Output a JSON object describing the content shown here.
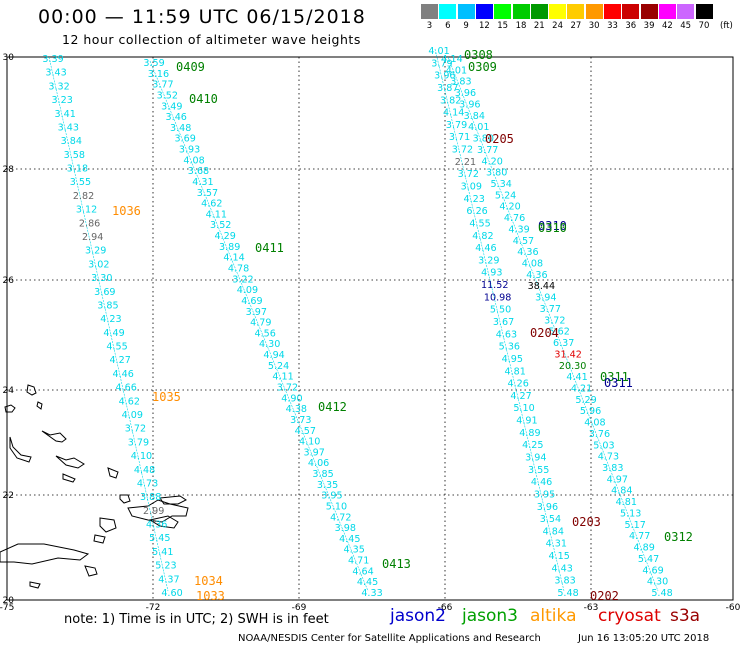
{
  "header": {
    "title": "00:00 — 11:59 UTC 06/15/2018",
    "subtitle": "12 hour collection of altimeter wave heights"
  },
  "legend": {
    "unit": "(ft)",
    "bins": [
      {
        "label": "3",
        "color": "#808080"
      },
      {
        "label": "6",
        "color": "#00ffff"
      },
      {
        "label": "9",
        "color": "#00bfff"
      },
      {
        "label": "12",
        "color": "#0000ff"
      },
      {
        "label": "15",
        "color": "#00ff00"
      },
      {
        "label": "18",
        "color": "#00cc00"
      },
      {
        "label": "21",
        "color": "#009900"
      },
      {
        "label": "24",
        "color": "#ffff00"
      },
      {
        "label": "27",
        "color": "#ffcc00"
      },
      {
        "label": "30",
        "color": "#ff9900"
      },
      {
        "label": "33",
        "color": "#ff0000"
      },
      {
        "label": "36",
        "color": "#cc0000"
      },
      {
        "label": "39",
        "color": "#990000"
      },
      {
        "label": "42",
        "color": "#ff00ff"
      },
      {
        "label": "45",
        "color": "#cc66ff"
      },
      {
        "label": "70",
        "color": "#000000"
      }
    ]
  },
  "axes": {
    "lon_labels": [
      "-75",
      "-72",
      "-69",
      "-66",
      "-63",
      "-60"
    ],
    "lat_labels": [
      "30",
      "28",
      "26",
      "24",
      "22",
      "20"
    ]
  },
  "colors": {
    "cyan": "#00d8e8",
    "gray": "#666666",
    "navy": "#000090",
    "green": "#008000",
    "orange": "#ff8c00",
    "darkred": "#800000",
    "red": "#e00000",
    "black": "#000000"
  },
  "passes": [
    {
      "label": "0409",
      "color": "#008000"
    },
    {
      "label": "0410",
      "color": "#008000"
    },
    {
      "label": "0411",
      "color": "#008000"
    },
    {
      "label": "0412",
      "color": "#008000"
    },
    {
      "label": "0413",
      "color": "#008000"
    },
    {
      "label": "1036",
      "color": "#ff8c00"
    },
    {
      "label": "1035",
      "color": "#ff8c00"
    },
    {
      "label": "1034",
      "color": "#ff8c00"
    },
    {
      "label": "1033",
      "color": "#ff8c00"
    },
    {
      "label": "0308",
      "color": "#008000"
    },
    {
      "label": "0309",
      "color": "#008000"
    },
    {
      "label": "0205",
      "color": "#800000"
    },
    {
      "label": "0310",
      "color": "#000090"
    },
    {
      "label": "0310",
      "color": "#008000"
    },
    {
      "label": "0204",
      "color": "#800000"
    },
    {
      "label": "0311",
      "color": "#008000"
    },
    {
      "label": "0311",
      "color": "#000090"
    },
    {
      "label": "0203",
      "color": "#800000"
    },
    {
      "label": "0312",
      "color": "#008000"
    },
    {
      "label": "0202",
      "color": "#800000"
    }
  ],
  "tracks": [
    {
      "color": "cyan",
      "values": [
        "3.39",
        "3.43",
        "3.32",
        "3.23",
        "3.41",
        "3.43",
        "3.84",
        "3.58",
        "3.18",
        "3.55",
        "2.82",
        "3.12",
        "2.86",
        "2.94",
        "3.29",
        "3.02",
        "3.30",
        "3.69",
        "3.85",
        "4.23",
        "4.49",
        "4.55",
        "4.27",
        "4.46",
        "4.66",
        "4.62",
        "4.09",
        "3.72",
        "3.79",
        "4.10",
        "4.48",
        "4.73",
        "3.88",
        "2.99",
        "4.36",
        "5.45",
        "5.41",
        "5.23",
        "4.37",
        "4.60"
      ],
      "colors": {
        "10": "gray",
        "12": "gray",
        "13": "gray",
        "33": "gray"
      }
    },
    {
      "color": "cyan",
      "values": [
        "3.59",
        "3.16",
        "3.77",
        "3.52",
        "3.49",
        "3.46",
        "3.48",
        "3.69",
        "3.93",
        "4.08",
        "3.68",
        "4.31",
        "3.57",
        "4.62",
        "4.11",
        "3.52",
        "4.29",
        "3.89",
        "4.14",
        "4.78",
        "3.22",
        "4.09",
        "4.69",
        "3.97",
        "4.79",
        "4.56",
        "4.30",
        "4.94",
        "5.24",
        "4.11",
        "3.72",
        "4.90",
        "4.38",
        "3.73",
        "4.57",
        "4.10",
        "3.97",
        "4.06",
        "3.85",
        "3.35",
        "3.95",
        "5.10",
        "4.72",
        "3.98",
        "4.45",
        "4.35",
        "4.71",
        "4.64",
        "4.45",
        "4.33"
      ]
    },
    {
      "color": "cyan",
      "values": [
        "4.01",
        "3.79",
        "3.96",
        "3.87",
        "3.82",
        "4.14",
        "3.79",
        "3.71",
        "3.72",
        "2.21",
        "3.72",
        "3.09",
        "4.23",
        "6.26",
        "4.55",
        "4.82",
        "4.46",
        "3.29",
        "4.93",
        "11.52",
        "10.98",
        "5.50",
        "3.67",
        "4.63",
        "5.36",
        "4.95",
        "4.81",
        "4.26",
        "4.27",
        "5.10",
        "4.91",
        "4.89",
        "4.25",
        "3.94",
        "3.55",
        "4.46",
        "3.95",
        "3.96",
        "3.54",
        "4.84",
        "4.31",
        "4.15",
        "4.43",
        "3.83",
        "5.48"
      ],
      "colors": {
        "9": "gray",
        "19": "navy",
        "20": "navy"
      }
    },
    {
      "color": "cyan",
      "values": [
        "4.14",
        "4.01",
        "3.83",
        "3.96",
        "3.96",
        "3.84",
        "4.01",
        "3.80",
        "3.77",
        "4.20",
        "3.80",
        "5.34",
        "5.24",
        "4.20",
        "4.76",
        "4.39",
        "4.57",
        "4.36",
        "4.08",
        "4.36",
        "38.44",
        "3.94",
        "3.77",
        "3.72",
        "5.62",
        "6.37",
        "31.42",
        "20.30",
        "4.41",
        "4.21",
        "5.29",
        "5.96",
        "4.08",
        "3.76",
        "5.03",
        "4.73",
        "3.83",
        "4.97",
        "4.84",
        "4.81",
        "5.13",
        "5.17",
        "4.77",
        "4.89",
        "5.47",
        "4.69",
        "4.30",
        "5.48"
      ],
      "colors": {
        "20": "black",
        "26": "red",
        "27": "green"
      }
    }
  ],
  "note": {
    "text": "note: 1) Time is in UTC; 2) SWH is in feet",
    "satellites": [
      {
        "name": "jason2",
        "color": "#0000cc"
      },
      {
        "name": "jason3",
        "color": "#00a000"
      },
      {
        "name": "altika",
        "color": "#ff9900"
      },
      {
        "name": "cryosat",
        "color": "#dd0000"
      },
      {
        "name": "s3a",
        "color": "#990000"
      }
    ]
  },
  "footer": {
    "credit": "NOAA/NESDIS Center for Satellite Applications and Research",
    "timestamp": "Jun 16 13:05:20 UTC 2018"
  }
}
